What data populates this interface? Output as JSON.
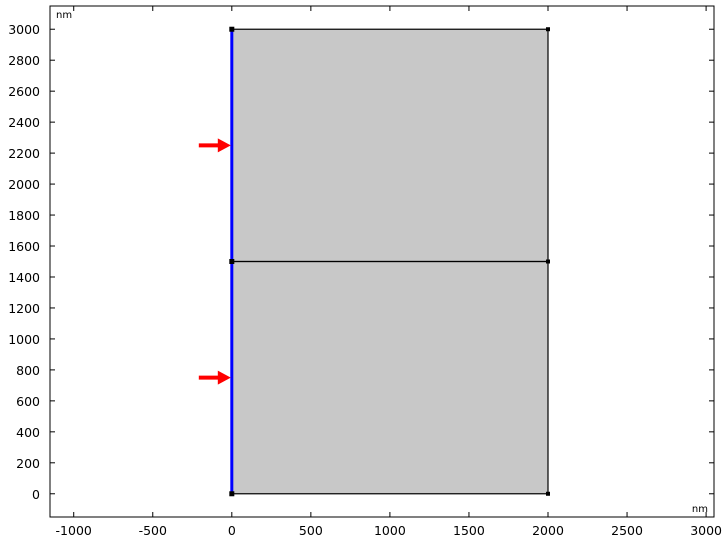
{
  "view": {
    "x_unit": "nm",
    "y_unit": "nm",
    "x_range": [
      -1150,
      3050
    ],
    "y_range": [
      -150,
      3150
    ],
    "x_ticks": [
      -1000,
      -500,
      0,
      500,
      1000,
      1500,
      2000,
      2500,
      3000
    ],
    "y_ticks": [
      0,
      200,
      400,
      600,
      800,
      1000,
      1200,
      1400,
      1600,
      1800,
      2000,
      2200,
      2400,
      2600,
      2800,
      3000
    ],
    "x_tick_labels": [
      "-1000",
      "-500",
      "0",
      "500",
      "1000",
      "1500",
      "2000",
      "2500",
      "3000"
    ],
    "y_tick_labels": [
      "0",
      "200",
      "400",
      "600",
      "800",
      "1000",
      "1200",
      "1400",
      "1600",
      "1800",
      "2000",
      "2200",
      "2400",
      "2600",
      "2800",
      "3000"
    ]
  },
  "geometry": {
    "domains": [
      {
        "x": [
          0,
          2000
        ],
        "y": [
          0,
          1500
        ]
      },
      {
        "x": [
          0,
          2000
        ],
        "y": [
          1500,
          3000
        ]
      }
    ],
    "vertices": [
      [
        0,
        0
      ],
      [
        2000,
        0
      ],
      [
        0,
        1500
      ],
      [
        2000,
        1500
      ],
      [
        0,
        3000
      ],
      [
        2000,
        3000
      ]
    ],
    "selected_boundary": {
      "x": 0,
      "y": [
        0,
        3000
      ]
    },
    "arrows": [
      {
        "x": 0,
        "y": 750,
        "direction": "+x"
      },
      {
        "x": 0,
        "y": 2250,
        "direction": "+x"
      }
    ]
  },
  "colors": {
    "domain_fill": "#c8c8c8",
    "edge": "#000000",
    "selected_edge": "#0000ff",
    "arrow": "#ff0000",
    "background": "#ffffff"
  }
}
